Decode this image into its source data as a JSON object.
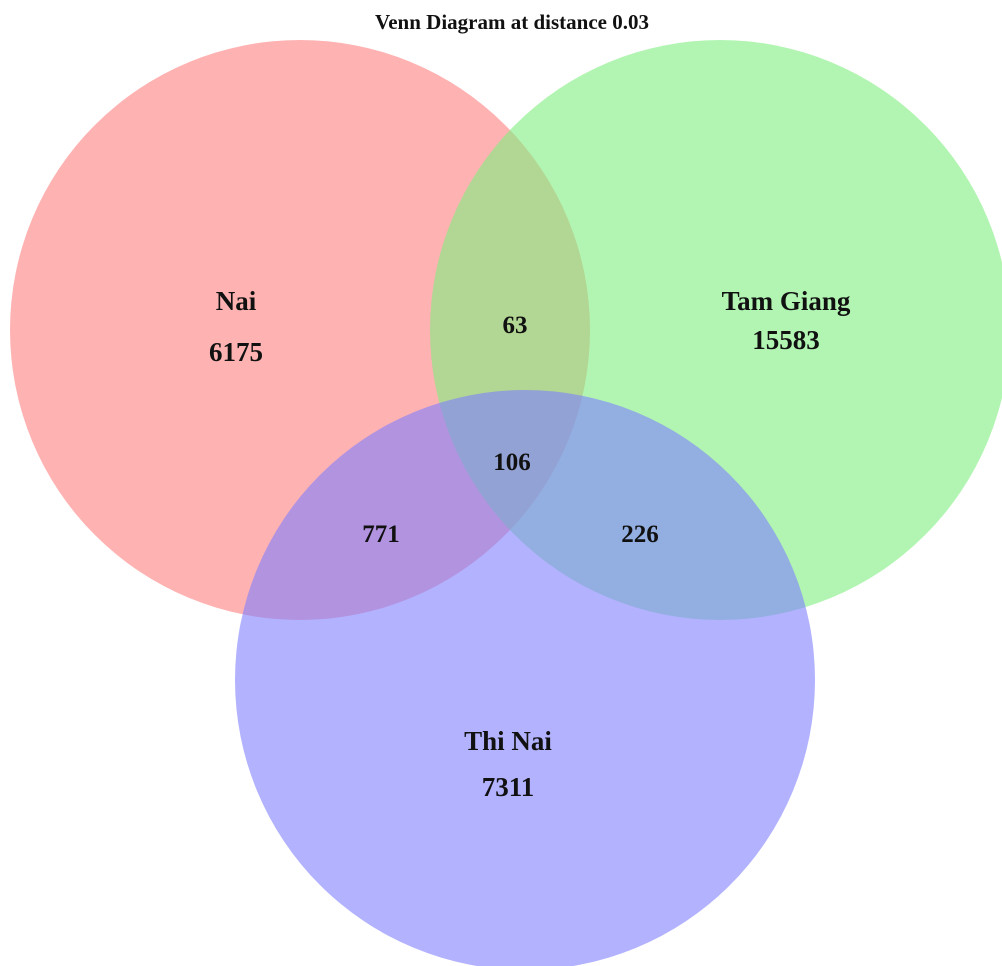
{
  "title": "Venn Diagram at distance 0.03",
  "sets": [
    {
      "name": "Nai",
      "count": "6175",
      "color": "#ff7f7f",
      "opacity": 0.6
    },
    {
      "name": "Tam Giang",
      "count": "15583",
      "color": "#7fef7f",
      "opacity": 0.6
    },
    {
      "name": "Thi Nai",
      "count": "7311",
      "color": "#7f7fff",
      "opacity": 0.6
    }
  ],
  "overlaps": {
    "nai_tam_giang": "63",
    "nai_thi_nai": "771",
    "tam_giang_thi_nai": "226",
    "all_three": "106"
  }
}
